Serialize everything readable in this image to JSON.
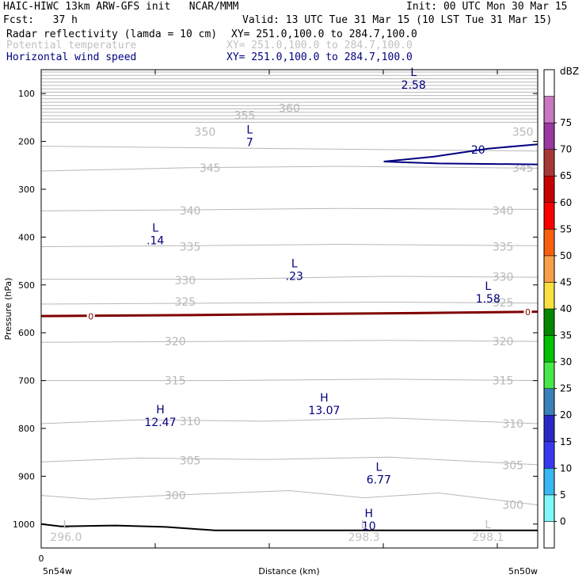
{
  "header": {
    "title_left": "HAIC-HIWC 13km ARW-GFS init   NCAR/MMM",
    "init": "Init: 00 UTC Mon 30 Mar 15",
    "fcst": "Fcst:   37 h",
    "valid": "Valid: 13 UTC Tue 31 Mar 15 (10 LST Tue 31 Mar 15)"
  },
  "layers": [
    {
      "name": "Radar reflectivity (lamda = 10 cm)",
      "xy": "XY= 251.0,100.0 to 284.7,100.0",
      "color": "#000000"
    },
    {
      "name": "Potential temperature",
      "xy": "XY= 251.0,100.0 to 284.7,100.0",
      "color": "#c0c0c0"
    },
    {
      "name": "Horizontal wind speed",
      "xy": "XY= 251.0,100.0 to 284.7,100.0",
      "color": "#000080"
    }
  ],
  "chart_data": {
    "type": "cross-section",
    "ylabel": "Pressure (hPa)",
    "xlabel": "Distance (km)",
    "y_ticks": [
      "100",
      "200",
      "300",
      "400",
      "500",
      "600",
      "700",
      "800",
      "900",
      "1000"
    ],
    "ylim": [
      1050,
      50
    ],
    "x_tick_value": "0",
    "x_left_label": "5n54w",
    "x_right_label": "5n50w",
    "colorbar": {
      "unit": "dBZ",
      "levels": [
        "0",
        "5",
        "10",
        "15",
        "20",
        "25",
        "30",
        "35",
        "40",
        "45",
        "50",
        "55",
        "60",
        "65",
        "70",
        "75"
      ],
      "colors": [
        "#ffffff",
        "#7ef8f8",
        "#38b8f0",
        "#3838f0",
        "#2828c8",
        "#3880b8",
        "#48e848",
        "#00c000",
        "#008800",
        "#f8e040",
        "#f8a048",
        "#f86010",
        "#f80000",
        "#c80000",
        "#a83838",
        "#9838a0",
        "#c878c0",
        "#ffffff"
      ]
    },
    "theta_labels": [
      {
        "text": "360",
        "x": 0.5,
        "p": 130
      },
      {
        "text": "355",
        "x": 0.41,
        "p": 145
      },
      {
        "text": "350",
        "x": 0.33,
        "p": 180
      },
      {
        "text": "350",
        "x": 0.97,
        "p": 180
      },
      {
        "text": "345",
        "x": 0.34,
        "p": 255
      },
      {
        "text": "345",
        "x": 0.97,
        "p": 255
      },
      {
        "text": "340",
        "x": 0.3,
        "p": 345
      },
      {
        "text": "340",
        "x": 0.93,
        "p": 345
      },
      {
        "text": "335",
        "x": 0.3,
        "p": 420
      },
      {
        "text": "335",
        "x": 0.93,
        "p": 420
      },
      {
        "text": "330",
        "x": 0.29,
        "p": 490
      },
      {
        "text": "330",
        "x": 0.93,
        "p": 483
      },
      {
        "text": "325",
        "x": 0.29,
        "p": 535
      },
      {
        "text": "325",
        "x": 0.93,
        "p": 537
      },
      {
        "text": "320",
        "x": 0.27,
        "p": 618
      },
      {
        "text": "320",
        "x": 0.93,
        "p": 618
      },
      {
        "text": "315",
        "x": 0.27,
        "p": 700
      },
      {
        "text": "315",
        "x": 0.93,
        "p": 700
      },
      {
        "text": "310",
        "x": 0.3,
        "p": 785
      },
      {
        "text": "310",
        "x": 0.95,
        "p": 790
      },
      {
        "text": "305",
        "x": 0.3,
        "p": 867
      },
      {
        "text": "305",
        "x": 0.95,
        "p": 877
      },
      {
        "text": "300",
        "x": 0.27,
        "p": 940
      },
      {
        "text": "300",
        "x": 0.95,
        "p": 960
      }
    ],
    "extrema": [
      {
        "symbol": "L",
        "value": "2.58",
        "x": 0.75,
        "p": 70,
        "color": "#000080"
      },
      {
        "symbol": "L",
        "value": "7",
        "x": 0.42,
        "p": 190,
        "color": "#000080"
      },
      {
        "symbol": "L",
        "value": ".14",
        "x": 0.23,
        "p": 395,
        "color": "#000080"
      },
      {
        "symbol": "L",
        "value": ".23",
        "x": 0.51,
        "p": 470,
        "color": "#000080"
      },
      {
        "symbol": "L",
        "value": "1.58",
        "x": 0.9,
        "p": 517,
        "color": "#000080"
      },
      {
        "symbol": "H",
        "value": "12.47",
        "x": 0.24,
        "p": 775,
        "color": "#000080"
      },
      {
        "symbol": "H",
        "value": "13.07",
        "x": 0.57,
        "p": 750,
        "color": "#000080"
      },
      {
        "symbol": "L",
        "value": "6.77",
        "x": 0.68,
        "p": 895,
        "color": "#000080"
      },
      {
        "symbol": "H",
        "value": "10",
        "x": 0.66,
        "p": 992,
        "color": "#000080"
      },
      {
        "symbol": "L",
        "value": "296.0",
        "x": 0.05,
        "p": 1015,
        "color": "#c0c0c0"
      },
      {
        "symbol": "L",
        "value": "298.3",
        "x": 0.65,
        "p": 1015,
        "color": "#c0c0c0"
      },
      {
        "symbol": "L",
        "value": "298.1",
        "x": 0.9,
        "p": 1015,
        "color": "#c0c0c0"
      }
    ],
    "wind_contour_labels": [
      {
        "text": "20",
        "x": 0.88,
        "p": 217
      }
    ],
    "freezing_level_labels": [
      {
        "text": "0",
        "x": 0.1,
        "p": 566
      },
      {
        "text": "0",
        "x": 0.98,
        "p": 557
      }
    ],
    "colors": {
      "theta": "#b8b8b8",
      "wind": "#000080",
      "freezing_level": "#800000",
      "terrain": "#000000"
    }
  }
}
